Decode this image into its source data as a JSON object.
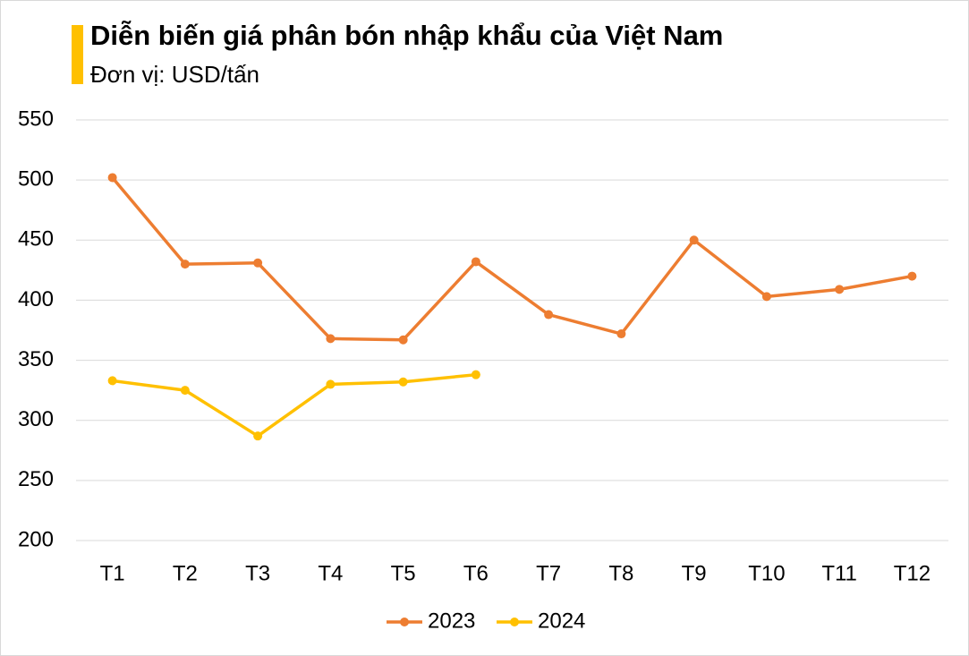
{
  "chart_data": {
    "type": "line",
    "title": "Diễn biến giá phân bón nhập khẩu của Việt Nam",
    "subtitle": "Đơn vị: USD/tấn",
    "categories": [
      "T1",
      "T2",
      "T3",
      "T4",
      "T5",
      "T6",
      "T7",
      "T8",
      "T9",
      "T10",
      "T11",
      "T12"
    ],
    "series": [
      {
        "name": "2023",
        "color": "#ed7d31",
        "values": [
          502,
          430,
          431,
          368,
          367,
          432,
          388,
          372,
          450,
          403,
          409,
          420
        ]
      },
      {
        "name": "2024",
        "color": "#ffc000",
        "values": [
          333,
          325,
          287,
          330,
          332,
          338,
          null,
          null,
          null,
          null,
          null,
          null
        ]
      }
    ],
    "ylim": [
      200,
      550
    ],
    "yticks": [
      200,
      250,
      300,
      350,
      400,
      450,
      500,
      550
    ],
    "grid": true,
    "legend": "bottom"
  }
}
